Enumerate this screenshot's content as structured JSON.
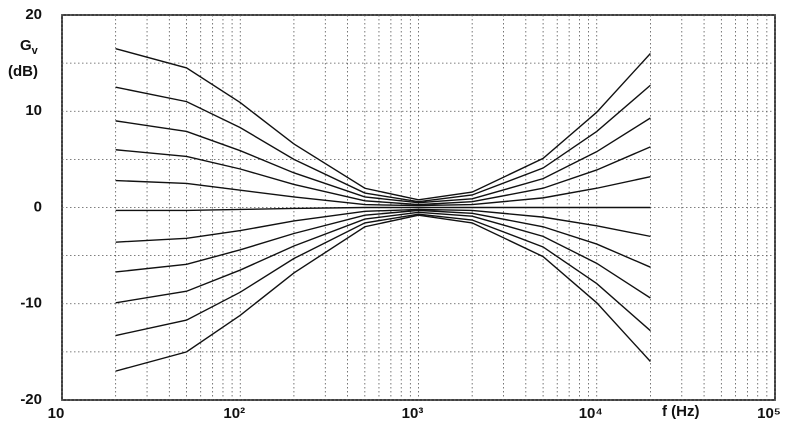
{
  "chart_data": {
    "type": "line",
    "ylabel": {
      "symbol": "G",
      "subscript": "v",
      "unit": "(dB)"
    },
    "xlabel": "f (Hz)",
    "log_x": true,
    "grid": true,
    "color": "#111111",
    "xlim": [
      10,
      100000
    ],
    "ylim": [
      -20,
      20
    ],
    "xticks": [
      10,
      {
        "value": 100,
        "label": "10²"
      },
      {
        "value": 1000,
        "label": "10³"
      },
      {
        "value": 10000,
        "label": "10⁴"
      },
      {
        "value": 100000,
        "label": "10⁵"
      }
    ],
    "xminorticks": [
      20,
      30,
      40,
      50,
      60,
      70,
      80,
      90,
      200,
      300,
      400,
      500,
      600,
      700,
      800,
      900,
      2000,
      3000,
      4000,
      5000,
      6000,
      7000,
      8000,
      9000,
      20000,
      30000,
      40000,
      50000,
      60000,
      70000,
      80000,
      90000
    ],
    "yticks": [
      -20,
      -10,
      0,
      10,
      20
    ],
    "yminorticks": [
      -15,
      -5,
      5,
      15
    ],
    "x": [
      20,
      50,
      100,
      200,
      500,
      1000,
      2000,
      5000,
      10000,
      20000
    ],
    "series": [
      {
        "values": [
          16.5,
          14.5,
          10.9,
          6.6,
          2.0,
          0.8,
          1.6,
          5.1,
          9.9,
          16
        ]
      },
      {
        "values": [
          12.5,
          11.0,
          8.3,
          5.0,
          1.5,
          0.6,
          1.3,
          4.1,
          7.9,
          12.7
        ]
      },
      {
        "values": [
          9,
          7.9,
          5.9,
          3.6,
          1.1,
          0.5,
          0.9,
          3.0,
          5.8,
          9.3
        ]
      },
      {
        "values": [
          6,
          5.3,
          4.0,
          2.4,
          0.7,
          0.3,
          0.6,
          2.0,
          3.9,
          6.3
        ]
      },
      {
        "values": [
          2.8,
          2.5,
          1.8,
          1.1,
          0.3,
          0.2,
          0.3,
          1.0,
          2.0,
          3.2
        ]
      },
      {
        "values": [
          -0.3,
          -0.3,
          -0.2,
          -0.1,
          0,
          0,
          0,
          0,
          0,
          0
        ]
      },
      {
        "values": [
          -3.6,
          -3.2,
          -2.4,
          -1.4,
          -0.4,
          -0.2,
          -0.3,
          -1.0,
          -1.9,
          -3
        ]
      },
      {
        "values": [
          -6.7,
          -5.9,
          -4.4,
          -2.7,
          -0.8,
          -0.3,
          -0.6,
          -2.0,
          -3.8,
          -6.2
        ]
      },
      {
        "values": [
          -9.9,
          -8.7,
          -6.5,
          -4.0,
          -1.2,
          -0.5,
          -0.9,
          -3.0,
          -5.8,
          -9.4
        ]
      },
      {
        "values": [
          -13.3,
          -11.7,
          -8.8,
          -5.3,
          -1.6,
          -0.7,
          -1.3,
          -4.1,
          -7.9,
          -12.8
        ]
      },
      {
        "values": [
          -17,
          -15.0,
          -11.2,
          -6.8,
          -2.0,
          -0.8,
          -1.6,
          -5.1,
          -9.9,
          -16
        ]
      }
    ]
  }
}
